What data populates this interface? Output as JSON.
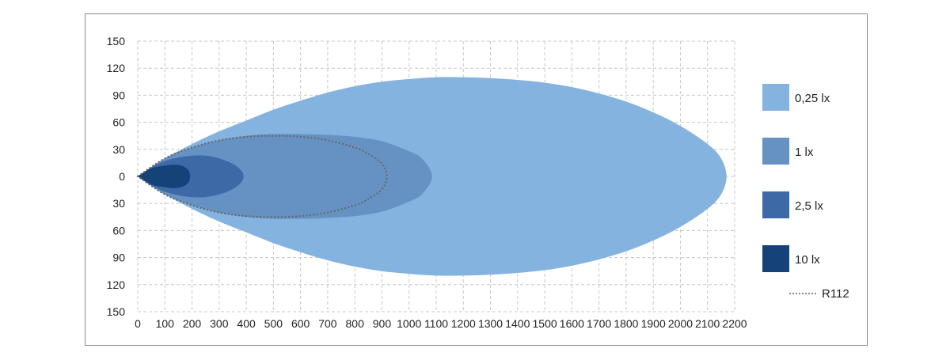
{
  "chart_data": {
    "type": "area",
    "title": "",
    "xlabel": "",
    "ylabel": "",
    "xlim": [
      0,
      2200
    ],
    "ylim": [
      -150,
      150
    ],
    "grid": true,
    "legend_position": "right",
    "x_ticks": [
      "0",
      "100",
      "200",
      "300",
      "400",
      "500",
      "600",
      "700",
      "800",
      "900",
      "1000",
      "1100",
      "1200",
      "1300",
      "1400",
      "1500",
      "1600",
      "1700",
      "1800",
      "1900",
      "2000",
      "2100",
      "2200"
    ],
    "y_ticks": [
      "150",
      "120",
      "90",
      "60",
      "30",
      "0",
      "30",
      "60",
      "90",
      "120",
      "150"
    ],
    "series": [
      {
        "name": "0,25 lx",
        "color": "#84b3e0",
        "style": "filled",
        "profile_x": [
          0,
          50,
          100,
          200,
          300,
          400,
          500,
          600,
          700,
          800,
          900,
          1000,
          1100,
          1200,
          1300,
          1400,
          1500,
          1600,
          1700,
          1800,
          1900,
          2000,
          2100,
          2150,
          2170
        ],
        "half_width": [
          0,
          10,
          20,
          36,
          50,
          62,
          74,
          84,
          93,
          100,
          105,
          108,
          110,
          110,
          109,
          107,
          104,
          99,
          92,
          83,
          71,
          56,
          36,
          20,
          0
        ]
      },
      {
        "name": "1 lx",
        "color": "#6592c2",
        "style": "filled",
        "profile_x": [
          0,
          100,
          200,
          300,
          400,
          500,
          600,
          700,
          800,
          900,
          1000,
          1050,
          1085
        ],
        "half_width": [
          0,
          20,
          32,
          40,
          45,
          47,
          47,
          46,
          44,
          39,
          28,
          19,
          0
        ]
      },
      {
        "name": "2,5 lx",
        "color": "#3d6aa6",
        "style": "filled",
        "profile_x": [
          0,
          50,
          100,
          150,
          200,
          250,
          300,
          350,
          380,
          390
        ],
        "half_width": [
          0,
          10,
          17,
          21,
          23,
          23,
          20,
          14,
          7,
          0
        ]
      },
      {
        "name": "10 lx",
        "color": "#16427a",
        "style": "filled",
        "profile_x": [
          0,
          30,
          60,
          100,
          130,
          160,
          180,
          190,
          193
        ],
        "half_width": [
          0,
          6,
          10,
          12,
          13,
          12,
          9,
          5,
          0
        ]
      },
      {
        "name": "R112",
        "color": "#666666",
        "style": "dotted",
        "profile_x": [
          0,
          100,
          200,
          300,
          400,
          500,
          600,
          700,
          800,
          850,
          900,
          918
        ],
        "half_width": [
          0,
          20,
          32,
          40,
          44,
          45,
          44,
          40,
          32,
          25,
          14,
          0
        ]
      }
    ]
  }
}
